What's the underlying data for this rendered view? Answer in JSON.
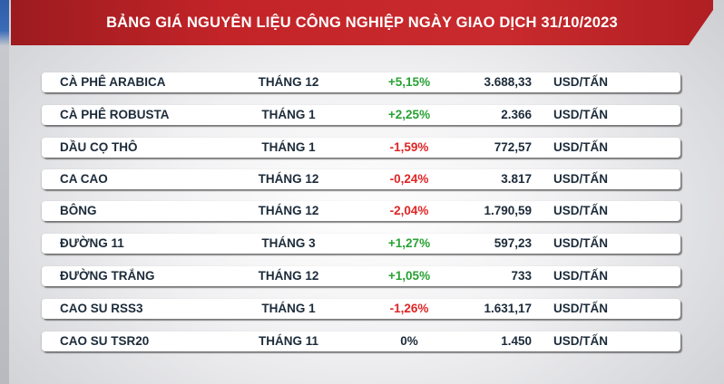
{
  "title": "BẢNG GIÁ NGUYÊN LIỆU CÔNG NGHIỆP NGÀY GIAO DỊCH 31/10/2023",
  "colors": {
    "banner": "#c22428",
    "up": "#27a233",
    "down": "#e02424",
    "text": "#1c2b3a"
  },
  "rows": [
    {
      "name": "CÀ PHÊ ARABICA",
      "month": "THÁNG 12",
      "change": "+5,15%",
      "dir": "up",
      "price": "3.688,33",
      "unit": "USD/TẤN"
    },
    {
      "name": "CÀ PHÊ ROBUSTA",
      "month": "THÁNG 1",
      "change": "+2,25%",
      "dir": "up",
      "price": "2.366",
      "unit": "USD/TẤN"
    },
    {
      "name": "DẦU CỌ THÔ",
      "month": "THÁNG 1",
      "change": "-1,59%",
      "dir": "down",
      "price": "772,57",
      "unit": "USD/TẤN"
    },
    {
      "name": "CA CAO",
      "month": "THÁNG 12",
      "change": "-0,24%",
      "dir": "down",
      "price": "3.817",
      "unit": "USD/TẤN"
    },
    {
      "name": "BÔNG",
      "month": "THÁNG 12",
      "change": "-2,04%",
      "dir": "down",
      "price": "1.790,59",
      "unit": "USD/TẤN"
    },
    {
      "name": "ĐƯỜNG 11",
      "month": "THÁNG 3",
      "change": "+1,27%",
      "dir": "up",
      "price": "597,23",
      "unit": "USD/TẤN"
    },
    {
      "name": "ĐƯỜNG TRẮNG",
      "month": "THÁNG 12",
      "change": "+1,05%",
      "dir": "up",
      "price": "733",
      "unit": "USD/TẤN"
    },
    {
      "name": "CAO SU RSS3",
      "month": "THÁNG 1",
      "change": "-1,26%",
      "dir": "down",
      "price": "1.631,17",
      "unit": "USD/TẤN"
    },
    {
      "name": "CAO SU TSR20",
      "month": "THÁNG 11",
      "change": "0%",
      "dir": "flat",
      "price": "1.450",
      "unit": "USD/TẤN"
    }
  ]
}
